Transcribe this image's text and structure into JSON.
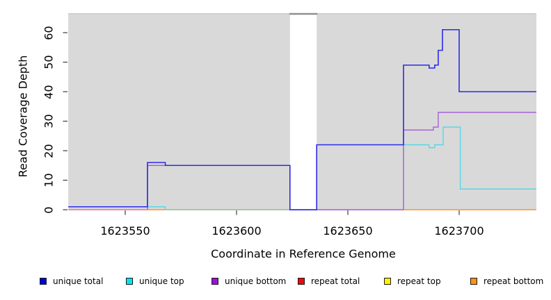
{
  "chart_data": {
    "type": "line",
    "subtype": "step-coverage",
    "title": "",
    "xlabel": "Coordinate in Reference Genome",
    "ylabel": "Read Coverage Depth",
    "x_ticks": [
      1623550,
      1623600,
      1623650,
      1623700
    ],
    "y_ticks": [
      0,
      10,
      20,
      30,
      40,
      50,
      60
    ],
    "xlim": [
      1623524.4,
      1623734.7
    ],
    "ylim": [
      0,
      66.6
    ],
    "grid": false,
    "legend_position": "bottom",
    "panel_color": "#d9d9d9",
    "panel_edge_color": "#c8c8c8",
    "gap_cap_color": "#8f8f8f",
    "tick_color": "#3c3c3c",
    "text_color": "#000000",
    "background_regions": [
      {
        "from": 1623524.4,
        "to": 1623624
      },
      {
        "from": 1623636,
        "to": 1623734.7
      }
    ],
    "coverage_gap": {
      "from": 1623624,
      "to": 1623636
    },
    "series": [
      {
        "key": "unique-total",
        "label": "unique total",
        "in_legend": true,
        "line_color": "#2b2be6",
        "swatch_color": "#0000e1",
        "line_width": 1.6,
        "z": 7,
        "paths": [
          [
            [
              1623524.4,
              1
            ],
            [
              1623560,
              16
            ],
            [
              1623568,
              15
            ],
            [
              1623624,
              0
            ],
            [
              1623636,
              22
            ],
            [
              1623675,
              49
            ],
            [
              1623686.5,
              48
            ],
            [
              1623689,
              49
            ],
            [
              1623690.6,
              54
            ],
            [
              1623692.5,
              61
            ],
            [
              1623700,
              40
            ],
            [
              1623734.7,
              40
            ]
          ]
        ]
      },
      {
        "key": "unique-top",
        "label": "unique top",
        "in_legend": true,
        "line_color": "#57d7e8",
        "swatch_color": "#00e3f0",
        "line_width": 1.4,
        "z": 4,
        "paths": [
          [
            [
              1623560,
              0
            ],
            [
              1623560,
              1
            ],
            [
              1623568,
              1
            ],
            [
              1623568,
              0
            ]
          ],
          [
            [
              1623675,
              0
            ],
            [
              1623675,
              22
            ],
            [
              1623686.5,
              21
            ],
            [
              1623689,
              22
            ],
            [
              1623692.8,
              28
            ],
            [
              1623700.5,
              7
            ],
            [
              1623734.7,
              7
            ]
          ]
        ]
      },
      {
        "key": "unique-bottom",
        "label": "unique bottom",
        "in_legend": true,
        "line_color": "#a763d9",
        "swatch_color": "#9c0fd6",
        "line_width": 1.4,
        "z": 5,
        "paths": [
          [
            [
              1623560,
              0
            ],
            [
              1623560,
              15
            ],
            [
              1623624,
              0
            ],
            [
              1623675,
              0
            ],
            [
              1623675,
              27
            ],
            [
              1623688.4,
              28
            ],
            [
              1623690.6,
              33
            ],
            [
              1623734.7,
              33
            ]
          ]
        ]
      },
      {
        "key": "repeat-total",
        "label": "repeat total",
        "in_legend": true,
        "line_color": "#db6287",
        "swatch_color": "#ee0909",
        "line_width": 1.3,
        "z": 1,
        "paths": [
          [
            [
              1623524.4,
              0
            ],
            [
              1623560,
              0
            ]
          ],
          [
            [
              1623636,
              0
            ],
            [
              1623675,
              0
            ]
          ]
        ]
      },
      {
        "key": "repeat-top",
        "label": "repeat top",
        "in_legend": true,
        "line_color": "#fff200",
        "swatch_color": "#fff200",
        "line_width": 1.3,
        "z": 0,
        "paths": []
      },
      {
        "key": "repeat-bottom",
        "label": "repeat bottom",
        "in_legend": true,
        "line_color": "#ff951c",
        "swatch_color": "#ff9312",
        "line_width": 1.4,
        "z": 3,
        "paths": [
          [
            [
              1623560,
              0
            ],
            [
              1623568,
              0
            ]
          ],
          [
            [
              1623675,
              0
            ],
            [
              1623734.7,
              0
            ]
          ]
        ]
      },
      {
        "key": "green-zero-line",
        "label": "",
        "in_legend": false,
        "line_color": "#74bd74",
        "swatch_color": "#74bd74",
        "line_width": 1.3,
        "z": 2,
        "paths": [
          [
            [
              1623568,
              0
            ],
            [
              1623636,
              0
            ]
          ]
        ]
      }
    ]
  }
}
